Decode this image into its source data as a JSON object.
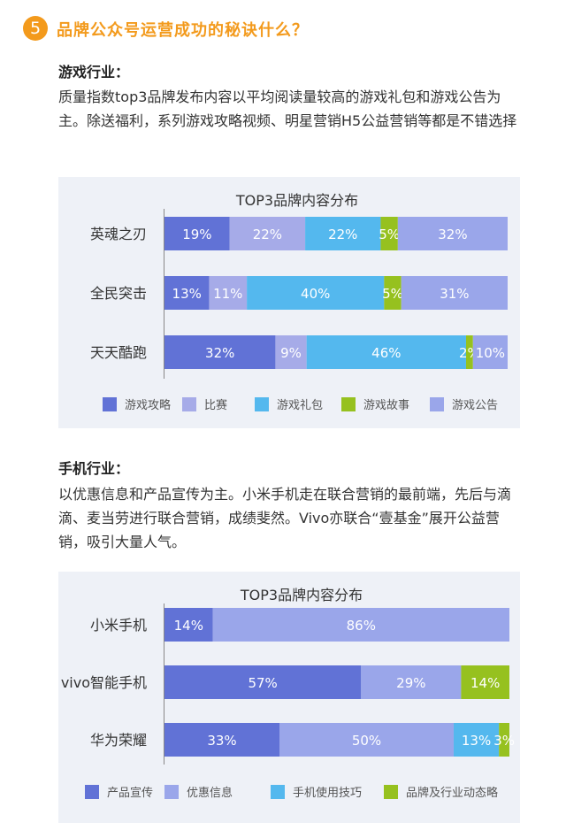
{
  "section": {
    "number": "5",
    "title": "品牌公众号运营成功的秘诀什么？"
  },
  "gaming": {
    "heading": "游戏行业：",
    "description": "质量指数top3品牌发布内容以平均阅读量较高的游戏礼包和游戏公告为主。除送福利，系列游戏攻略视频、明星营销H5公益营销等都是不错选择"
  },
  "mobile": {
    "heading": "手机行业：",
    "description": "以优惠信息和产品宣传为主。小米手机走在联合营销的最前端，先后与滴滴、麦当劳进行联合营销，成绩斐然。Vivo亦联合“壹基金”展开公益营销，吸引大量人气。"
  },
  "chart_data": [
    {
      "type": "bar",
      "orientation": "horizontal",
      "stacked": true,
      "title": "TOP3品牌内容分布",
      "categories": [
        "英魂之刃",
        "全民突击",
        "天天酷跑"
      ],
      "series": [
        {
          "name": "游戏攻略",
          "values": [
            19,
            13,
            32
          ],
          "labels": [
            "19%",
            "13%",
            "32%"
          ],
          "color": "#6172d6"
        },
        {
          "name": "比赛",
          "values": [
            22,
            11,
            9
          ],
          "labels": [
            "22%",
            "11%",
            "9%"
          ],
          "color": "#a6abe8"
        },
        {
          "name": "游戏礼包",
          "values": [
            22,
            40,
            46
          ],
          "labels": [
            "22%",
            "40%",
            "46%"
          ],
          "color": "#54b8ee"
        },
        {
          "name": "游戏故事",
          "values": [
            5,
            5,
            2
          ],
          "labels": [
            "5%",
            "5%",
            "2%"
          ],
          "color": "#96c11f"
        },
        {
          "name": "游戏公告",
          "values": [
            32,
            31,
            10
          ],
          "labels": [
            "32%",
            "31%",
            "10%"
          ],
          "color": "#9aa6ea"
        }
      ],
      "legend_position": "bottom",
      "grid": false
    },
    {
      "type": "bar",
      "orientation": "horizontal",
      "stacked": true,
      "title": "TOP3品牌内容分布",
      "categories": [
        "小米手机",
        "vivo智能手机",
        "华为荣耀"
      ],
      "series": [
        {
          "name": "产品宣传",
          "values": [
            14,
            57,
            33
          ],
          "labels": [
            "14%",
            "57%",
            "33%"
          ],
          "color": "#6172d6"
        },
        {
          "name": "优惠信息",
          "values": [
            86,
            29,
            50
          ],
          "labels": [
            "86%",
            "29%",
            "50%"
          ],
          "color": "#9aa6ea"
        },
        {
          "name": "手机使用技巧",
          "values": [
            0,
            0,
            13
          ],
          "labels": [
            "",
            "",
            "13%"
          ],
          "color": "#54b8ee"
        },
        {
          "name": "品牌及行业动态略",
          "values": [
            0,
            14,
            3
          ],
          "labels": [
            "",
            "14%",
            "3%"
          ],
          "color": "#96c11f"
        }
      ],
      "legend_position": "bottom",
      "grid": false
    }
  ]
}
